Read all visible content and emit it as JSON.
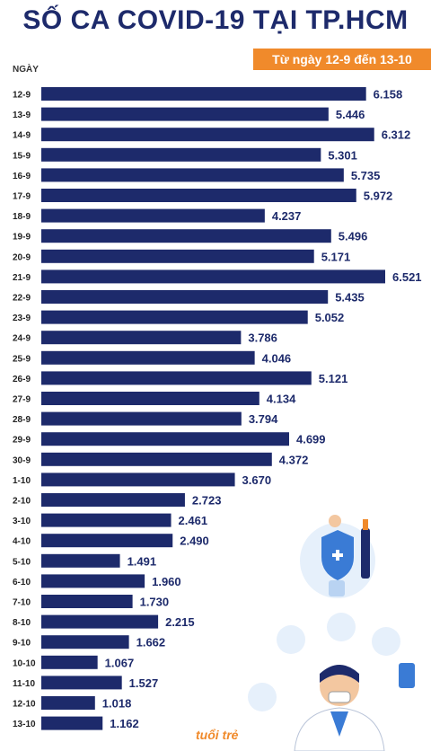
{
  "header": {
    "title": "SỐ CA COVID-19 TẠI TP.HCM",
    "subtitle": "Từ ngày 12-9 đến 13-10"
  },
  "colors": {
    "title": "#1d2a6b",
    "bar": "#1d2a6b",
    "accent": "#f08a2b",
    "illustration": "#3a7bd5"
  },
  "chart_data": {
    "type": "bar",
    "orientation": "horizontal",
    "xlabel": "",
    "ylabel": "NGÀY",
    "categories": [
      "12-9",
      "13-9",
      "14-9",
      "15-9",
      "16-9",
      "17-9",
      "18-9",
      "19-9",
      "20-9",
      "21-9",
      "22-9",
      "23-9",
      "24-9",
      "25-9",
      "26-9",
      "27-9",
      "28-9",
      "29-9",
      "30-9",
      "1-10",
      "2-10",
      "3-10",
      "4-10",
      "5-10",
      "6-10",
      "7-10",
      "8-10",
      "9-10",
      "10-10",
      "11-10",
      "12-10",
      "13-10"
    ],
    "values": [
      6158,
      5446,
      6312,
      5301,
      5735,
      5972,
      4237,
      5496,
      5171,
      6521,
      5435,
      5052,
      3786,
      4046,
      5121,
      4134,
      3794,
      4699,
      4372,
      3670,
      2723,
      2461,
      2490,
      1491,
      1960,
      1730,
      2215,
      1662,
      1067,
      1527,
      1018,
      1162
    ],
    "value_labels": [
      "6.158",
      "5.446",
      "6.312",
      "5.301",
      "5.735",
      "5.972",
      "4.237",
      "5.496",
      "5.171",
      "6.521",
      "5.435",
      "5.052",
      "3.786",
      "4.046",
      "5.121",
      "4.134",
      "3.794",
      "4.699",
      "4.372",
      "3.670",
      "2.723",
      "2.461",
      "2.490",
      "1.491",
      "1.960",
      "1.730",
      "2.215",
      "1.662",
      "1.067",
      "1.527",
      "1.018",
      "1.162"
    ],
    "grid": false,
    "legend": "none"
  },
  "branding": {
    "logo_text": "tuổi trẻ"
  }
}
